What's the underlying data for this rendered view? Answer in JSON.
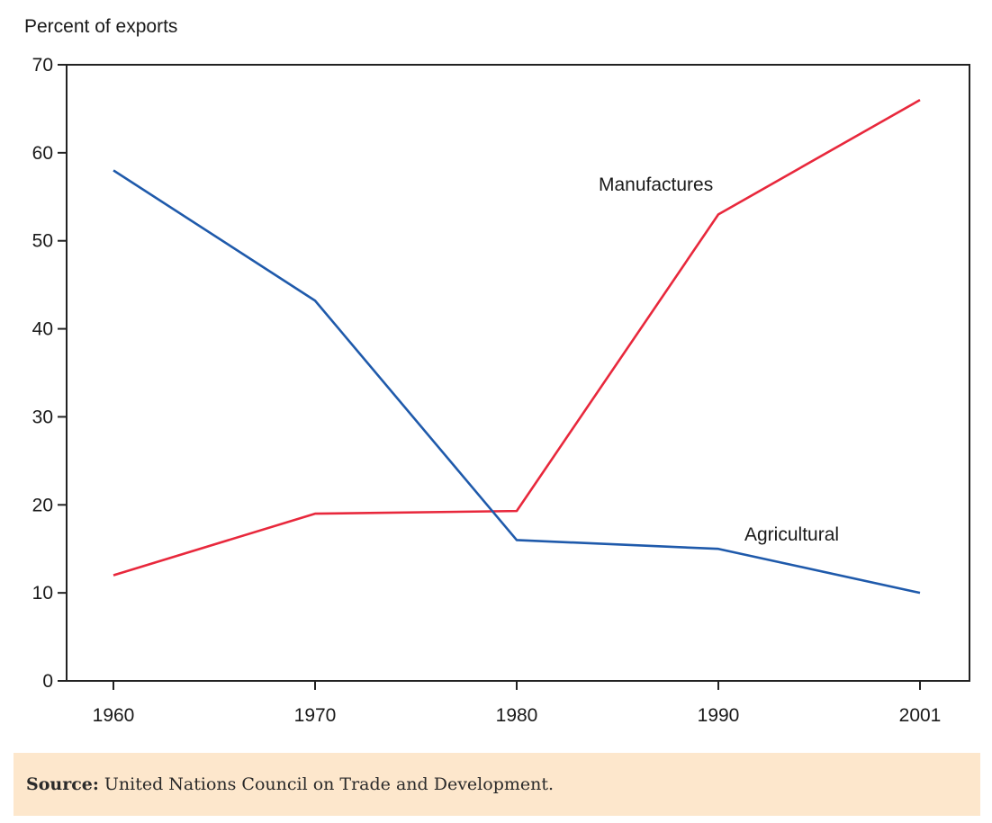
{
  "chart_data": {
    "type": "line",
    "title": "",
    "ylabel": "Percent of exports",
    "xlabel": "",
    "x": [
      "1960",
      "1970",
      "1980",
      "1990",
      "2001"
    ],
    "ylim": [
      0,
      70
    ],
    "yticks": [
      0,
      10,
      20,
      30,
      40,
      50,
      60,
      70
    ],
    "grid": false,
    "legend": "none",
    "series": [
      {
        "name": "Manufactures",
        "color": "#e8283c",
        "values": [
          12,
          19,
          19.3,
          53,
          66
        ]
      },
      {
        "name": "Agricultural",
        "color": "#1f5aab",
        "values": [
          58,
          43.2,
          16,
          15,
          10
        ]
      }
    ]
  },
  "source": {
    "label": "Source:",
    "text": "United Nations Council on Trade and Development.",
    "background": "#fde7cc"
  }
}
